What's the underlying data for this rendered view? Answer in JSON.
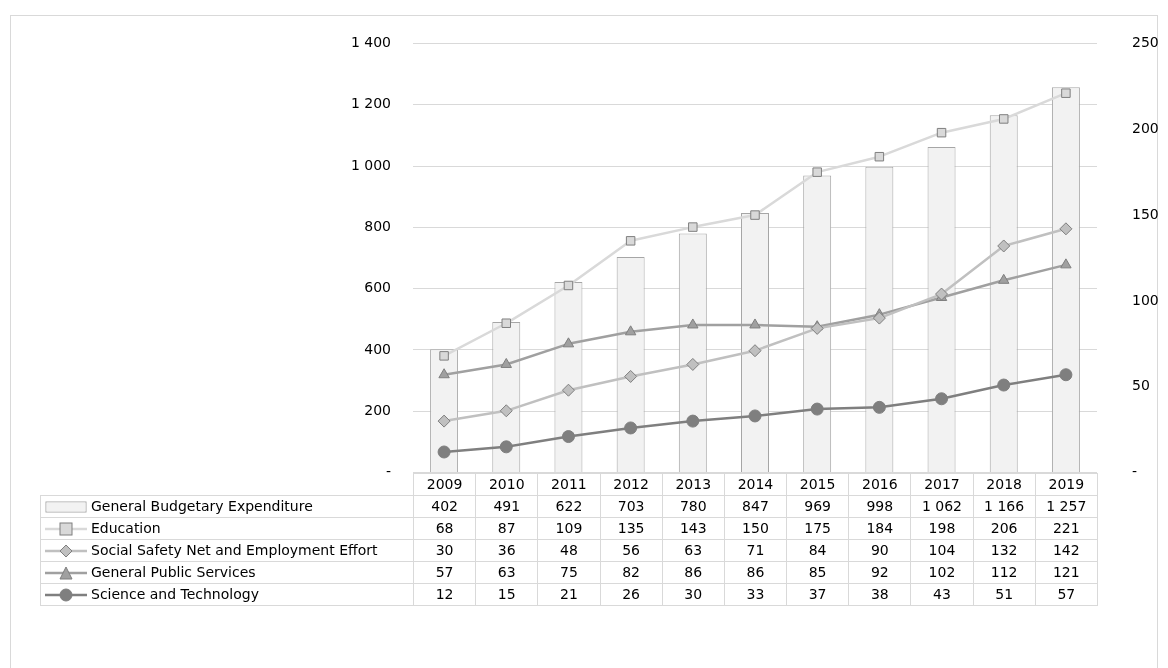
{
  "chart_data": {
    "type": "bar",
    "categories": [
      "2009",
      "2010",
      "2011",
      "2012",
      "2013",
      "2014",
      "2015",
      "2016",
      "2017",
      "2018",
      "2019"
    ],
    "series": [
      {
        "name": "General Budgetary Expenditure",
        "color": "#f2f2f2",
        "values": [
          402,
          491,
          622,
          703,
          780,
          847,
          969,
          998,
          1062,
          1166,
          1257
        ],
        "value_labels": [
          "402",
          "491",
          "622",
          "703",
          "780",
          "847",
          "969",
          "998",
          "1 062",
          "1 166",
          "1 257"
        ]
      },
      {
        "name": "Education",
        "type": "line",
        "axis": "y2",
        "marker": "square",
        "color": "#d9d9d9",
        "values": [
          68,
          87,
          109,
          135,
          143,
          150,
          175,
          184,
          198,
          206,
          221
        ]
      },
      {
        "name": "Social Safety Net and Employment Effort",
        "type": "line",
        "axis": "y2",
        "marker": "diamond",
        "color": "#c0c0c0",
        "values": [
          30,
          36,
          48,
          56,
          63,
          71,
          84,
          90,
          104,
          132,
          142
        ]
      },
      {
        "name": "General Public Services",
        "type": "line",
        "axis": "y2",
        "marker": "triangle",
        "color": "#a0a0a0",
        "values": [
          57,
          63,
          75,
          82,
          86,
          86,
          85,
          92,
          102,
          112,
          121
        ]
      },
      {
        "name": "Science and Technology",
        "type": "line",
        "axis": "y2",
        "marker": "circle",
        "color": "#7f7f7f",
        "values": [
          12,
          15,
          21,
          26,
          30,
          33,
          37,
          38,
          43,
          51,
          57
        ]
      }
    ],
    "ylim": [
      0,
      1400
    ],
    "yticks": [
      {
        "value": 0,
        "label": "-"
      },
      200,
      400,
      600,
      800,
      {
        "value": 1000,
        "label": "1 000"
      },
      {
        "value": 1200,
        "label": "1 200"
      },
      {
        "value": 1400,
        "label": "1 400"
      }
    ],
    "y2lim": [
      0,
      250
    ],
    "y2ticks": [
      {
        "value": 0,
        "label": "-"
      },
      50,
      100,
      150,
      200,
      250
    ],
    "grid": "y",
    "legend": "bottom",
    "data_labels": true
  }
}
